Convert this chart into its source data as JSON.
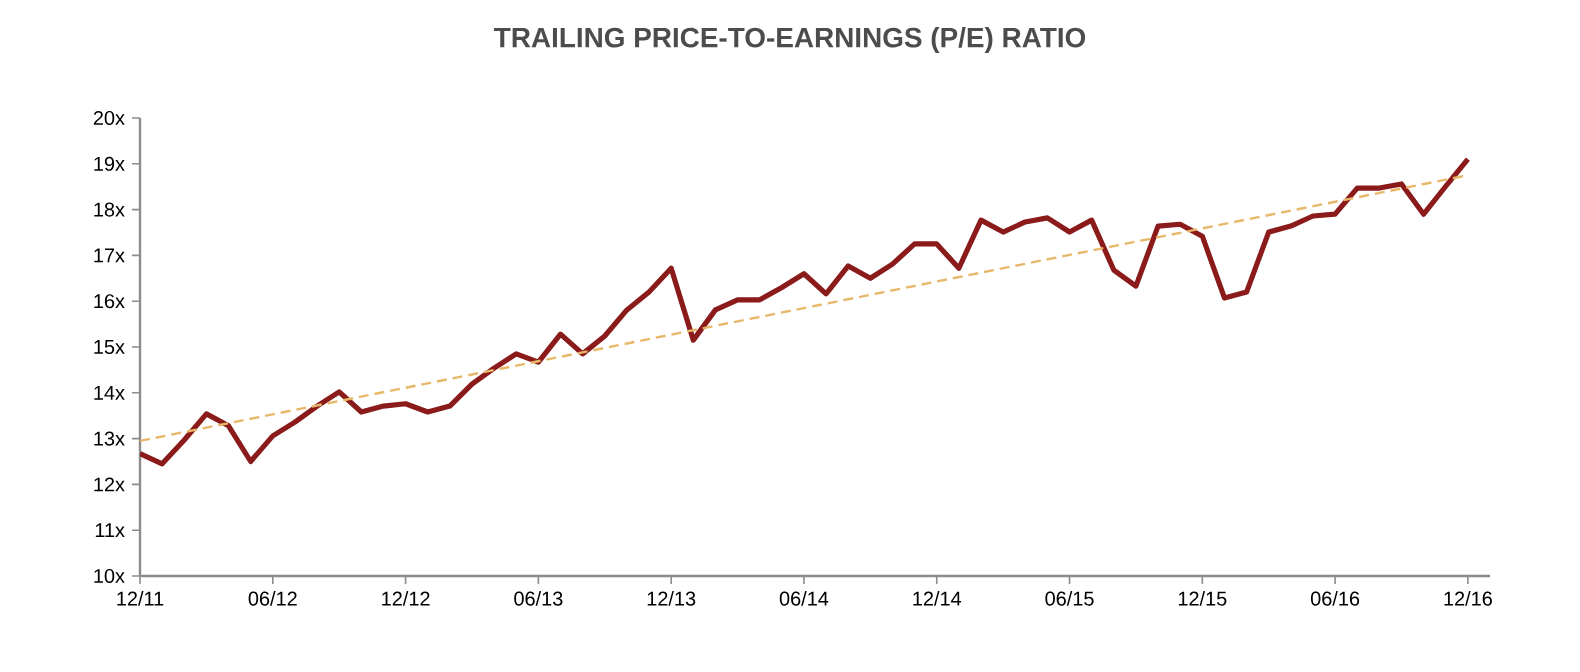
{
  "chart_data": {
    "type": "line",
    "title": "TRAILING PRICE-TO-EARNINGS (P/E) RATIO",
    "x": [
      "2011-12",
      "2012-01",
      "2012-02",
      "2012-03",
      "2012-04",
      "2012-05",
      "2012-06",
      "2012-07",
      "2012-08",
      "2012-09",
      "2012-10",
      "2012-11",
      "2012-12",
      "2013-01",
      "2013-02",
      "2013-03",
      "2013-04",
      "2013-05",
      "2013-06",
      "2013-07",
      "2013-08",
      "2013-09",
      "2013-10",
      "2013-11",
      "2013-12",
      "2014-01",
      "2014-02",
      "2014-03",
      "2014-04",
      "2014-05",
      "2014-06",
      "2014-07",
      "2014-08",
      "2014-09",
      "2014-10",
      "2014-11",
      "2014-12",
      "2015-01",
      "2015-02",
      "2015-03",
      "2015-04",
      "2015-05",
      "2015-06",
      "2015-07",
      "2015-08",
      "2015-09",
      "2015-10",
      "2015-11",
      "2015-12",
      "2016-01",
      "2016-02",
      "2016-03",
      "2016-04",
      "2016-05",
      "2016-06",
      "2016-07",
      "2016-08",
      "2016-09",
      "2016-10",
      "2016-11",
      "2016-12"
    ],
    "series": [
      {
        "color": "#8b1a1a",
        "line_style": "solid",
        "values": [
          12.67,
          12.45,
          12.97,
          13.54,
          13.28,
          12.5,
          13.06,
          13.36,
          13.71,
          14.02,
          13.58,
          13.71,
          13.76,
          13.58,
          13.71,
          14.19,
          14.54,
          14.85,
          14.67,
          15.28,
          14.85,
          15.24,
          15.81,
          16.2,
          16.72,
          15.15,
          15.81,
          16.03,
          16.03,
          16.3,
          16.6,
          16.16,
          16.77,
          16.5,
          16.81,
          17.25,
          17.25,
          16.72,
          17.77,
          17.51,
          17.73,
          17.82,
          17.51,
          17.77,
          16.68,
          16.33,
          17.64,
          17.68,
          17.42,
          16.07,
          16.2,
          17.51,
          17.64,
          17.86,
          17.9,
          18.47,
          18.47,
          18.56,
          17.9,
          18.51,
          19.1
        ]
      },
      {
        "type": "line",
        "color": "#e8b86a",
        "line_style": "dashed",
        "x": [
          "2011-12",
          "2016-12"
        ],
        "values": [
          12.95,
          18.75
        ]
      }
    ],
    "xlim": [
      "2011-12",
      "2017-01"
    ],
    "xticks": [
      {
        "value": "2011-12",
        "label": "12/11"
      },
      {
        "value": "2012-06",
        "label": "06/12"
      },
      {
        "value": "2012-12",
        "label": "12/12"
      },
      {
        "value": "2013-06",
        "label": "06/13"
      },
      {
        "value": "2013-12",
        "label": "12/13"
      },
      {
        "value": "2014-06",
        "label": "06/14"
      },
      {
        "value": "2014-12",
        "label": "12/14"
      },
      {
        "value": "2015-06",
        "label": "06/15"
      },
      {
        "value": "2015-12",
        "label": "12/15"
      },
      {
        "value": "2016-06",
        "label": "06/16"
      },
      {
        "value": "2016-12",
        "label": "12/16"
      }
    ],
    "ylim": [
      10,
      20
    ],
    "yticks": [
      {
        "value": 10,
        "label": "10x"
      },
      {
        "value": 11,
        "label": "11x"
      },
      {
        "value": 12,
        "label": "12x"
      },
      {
        "value": 13,
        "label": "13x"
      },
      {
        "value": 14,
        "label": "14x"
      },
      {
        "value": 15,
        "label": "15x"
      },
      {
        "value": 16,
        "label": "16x"
      },
      {
        "value": 17,
        "label": "17x"
      },
      {
        "value": 18,
        "label": "18x"
      },
      {
        "value": 19,
        "label": "19x"
      },
      {
        "value": 20,
        "label": "20x"
      }
    ],
    "grid": false
  }
}
